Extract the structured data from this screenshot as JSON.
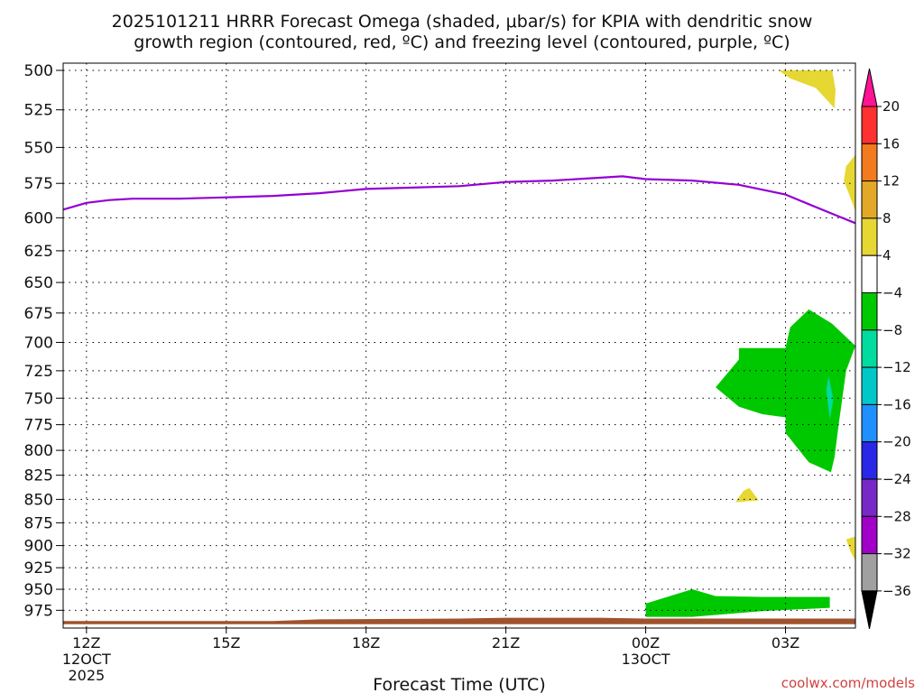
{
  "chart_data": {
    "type": "filled-contour",
    "title_line1": "2025101211 HRRR Forecast Omega (shaded, μbar/s) for KPIA with dendritic snow",
    "title_line2": "growth region (contoured, red, ºC) and freezing level (contoured, purple, ºC)",
    "xlabel": "Forecast Time (UTC)",
    "ylabel": "",
    "watermark": "coolwx.com/models",
    "x_hours_range": [
      -1,
      33
    ],
    "y_pressure_range": [
      500,
      990
    ],
    "y_ticks": [
      500,
      525,
      550,
      575,
      600,
      625,
      650,
      675,
      700,
      725,
      750,
      775,
      800,
      825,
      850,
      875,
      900,
      925,
      950,
      975
    ],
    "x_ticks": [
      {
        "h": 0,
        "label": "12Z",
        "sub": [
          "12OCT",
          "2025"
        ]
      },
      {
        "h": 6,
        "label": "15Z",
        "sub": []
      },
      {
        "h": 12,
        "label": "18Z",
        "sub": []
      },
      {
        "h": 18,
        "label": "21Z",
        "sub": []
      },
      {
        "h": 24,
        "label": "00Z",
        "sub": [
          "13OCT"
        ]
      },
      {
        "h": 30,
        "label": "03Z",
        "sub": []
      }
    ],
    "grid": true,
    "freezing_level": {
      "color": "#9400D3",
      "points": [
        [
          -1,
          594
        ],
        [
          0,
          589
        ],
        [
          1,
          587
        ],
        [
          2,
          586
        ],
        [
          4,
          586
        ],
        [
          6,
          585
        ],
        [
          8,
          584
        ],
        [
          10,
          582
        ],
        [
          12,
          579
        ],
        [
          14,
          578
        ],
        [
          16,
          577
        ],
        [
          18,
          574
        ],
        [
          20,
          573
        ],
        [
          22,
          571
        ],
        [
          23,
          570
        ],
        [
          24,
          572
        ],
        [
          26,
          573
        ],
        [
          28,
          576
        ],
        [
          30,
          583
        ],
        [
          31,
          590
        ],
        [
          32,
          597
        ],
        [
          33,
          604
        ]
      ]
    },
    "omega_regions": [
      {
        "level": "4 to 8",
        "color": "#E6D732",
        "points": [
          [
            29.7,
            500
          ],
          [
            32.0,
            500
          ],
          [
            32.15,
            512
          ],
          [
            32.1,
            524
          ],
          [
            31.3,
            511
          ],
          [
            30.2,
            505
          ]
        ]
      },
      {
        "level": "4 to 8",
        "color": "#E6D732",
        "points": [
          [
            33.0,
            555
          ],
          [
            33.0,
            595
          ],
          [
            32.5,
            573
          ],
          [
            32.6,
            563
          ]
        ]
      },
      {
        "level": "4 to 8",
        "color": "#E6D732",
        "points": [
          [
            28.85,
            851
          ],
          [
            27.85,
            853
          ],
          [
            28.2,
            841
          ],
          [
            28.45,
            838
          ]
        ]
      },
      {
        "level": "4 to 8",
        "color": "#E6D732",
        "points": [
          [
            33.0,
            890
          ],
          [
            32.6,
            893
          ],
          [
            32.8,
            907
          ],
          [
            33.0,
            917
          ]
        ]
      },
      {
        "level": "-8 to -4",
        "color": "#00C800",
        "points": [
          [
            30.2,
            687
          ],
          [
            31.0,
            672
          ],
          [
            32.0,
            684
          ],
          [
            33.0,
            703
          ],
          [
            32.6,
            725
          ],
          [
            32.3,
            772
          ],
          [
            32.1,
            807
          ],
          [
            31.95,
            822
          ],
          [
            31.0,
            812
          ],
          [
            30.0,
            783
          ],
          [
            30.0,
            768
          ],
          [
            29.0,
            765
          ],
          [
            28.0,
            758
          ],
          [
            27.0,
            740
          ],
          [
            28.0,
            715
          ],
          [
            28.0,
            705
          ],
          [
            29.0,
            705
          ],
          [
            30.0,
            705
          ]
        ]
      },
      {
        "level": "-12 to -8",
        "color": "#00DCA0",
        "points": [
          [
            31.85,
            730
          ],
          [
            31.75,
            742
          ],
          [
            31.9,
            770
          ],
          [
            32.05,
            751
          ]
        ]
      },
      {
        "level": "-8 to -4",
        "color": "#00C800",
        "points": [
          [
            24.0,
            967
          ],
          [
            26.0,
            950
          ],
          [
            27.0,
            958
          ],
          [
            29.0,
            959
          ],
          [
            31.9,
            959
          ],
          [
            31.9,
            972
          ],
          [
            29.0,
            976
          ],
          [
            26.0,
            983
          ],
          [
            24.0,
            983
          ]
        ]
      }
    ],
    "terrain": {
      "color": "#A0522D",
      "points": [
        [
          -1,
          988
        ],
        [
          8,
          988
        ],
        [
          10,
          986
        ],
        [
          16,
          985
        ],
        [
          18,
          984
        ],
        [
          22,
          984
        ],
        [
          24,
          985
        ],
        [
          33,
          985
        ],
        [
          33,
          992
        ],
        [
          -1,
          992
        ]
      ]
    },
    "colorbar": {
      "labels": [
        "20",
        "16",
        "12",
        "8",
        "4",
        "−4",
        "−8",
        "−12",
        "−16",
        "−20",
        "−24",
        "−28",
        "−32",
        "−36"
      ],
      "colors_top_down": [
        "#FF1493",
        "#FF3030",
        "#F47A1E",
        "#E4A828",
        "#E6D732",
        "#FFFFFF",
        "#00C800",
        "#00DCA0",
        "#00C8C8",
        "#1E90FF",
        "#2828E6",
        "#7828C8",
        "#A000C8",
        "#A0A0A0",
        "#000000"
      ]
    }
  }
}
